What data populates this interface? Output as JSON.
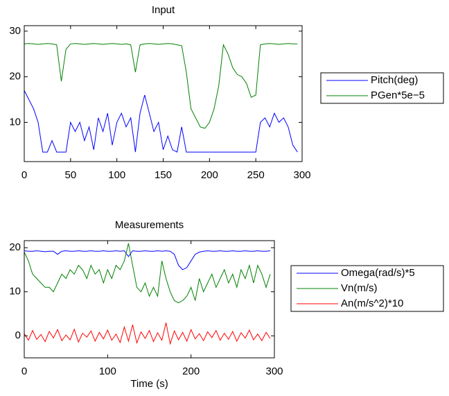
{
  "chart_data": [
    {
      "type": "line",
      "title": "Input",
      "xlim": [
        0,
        300
      ],
      "xticks": [
        0,
        50,
        100,
        150,
        200,
        250,
        300
      ],
      "ylim": [
        1.4,
        31.2
      ],
      "yticks": [
        10,
        20,
        30
      ],
      "legend": "east-outside",
      "x": [
        0,
        5,
        10,
        15,
        20,
        25,
        30,
        35,
        40,
        45,
        50,
        55,
        60,
        65,
        70,
        75,
        80,
        85,
        90,
        95,
        100,
        105,
        110,
        115,
        120,
        125,
        130,
        135,
        140,
        145,
        150,
        155,
        160,
        165,
        170,
        175,
        180,
        185,
        190,
        195,
        200,
        205,
        210,
        215,
        220,
        225,
        230,
        235,
        240,
        245,
        250,
        255,
        260,
        265,
        270,
        275,
        280,
        285,
        290,
        295
      ],
      "series": [
        {
          "name": "Pitch(deg)",
          "color": "#0000ff",
          "values": [
            17,
            15,
            13,
            10,
            3.5,
            3.5,
            6,
            3.5,
            3.5,
            3.5,
            10,
            8,
            10,
            6,
            9,
            4,
            11,
            8,
            12,
            5,
            10,
            12,
            9,
            11,
            3.5,
            12,
            16,
            12,
            8,
            10,
            4,
            7,
            4,
            3.5,
            9,
            3.5,
            3.5,
            3.5,
            3.5,
            3.5,
            3.5,
            3.5,
            3.5,
            3.5,
            3.5,
            3.5,
            3.5,
            3.5,
            3.5,
            3.5,
            3.5,
            10,
            11,
            9,
            12,
            10,
            11,
            9,
            5,
            3.5
          ]
        },
        {
          "name": "PGen*5e−5",
          "color": "#008000",
          "values": [
            27.2,
            27.3,
            27.2,
            27.1,
            27.2,
            27.3,
            27.2,
            27,
            19,
            26,
            27.2,
            27.3,
            27.2,
            27.1,
            27.2,
            27.3,
            27.2,
            27.1,
            27.2,
            27.3,
            27.2,
            27.1,
            27.2,
            27,
            21,
            27,
            27.2,
            27.3,
            27.2,
            27.1,
            27.2,
            27.3,
            27.2,
            27,
            26.8,
            21,
            13,
            11,
            9,
            8.7,
            10,
            13,
            18,
            27,
            25,
            22,
            20.5,
            20,
            18.5,
            15.5,
            16,
            27,
            27.2,
            27.3,
            27.2,
            27.1,
            27.2,
            27.3,
            27.2,
            27.2
          ]
        }
      ]
    },
    {
      "type": "line",
      "title": "Measurements",
      "xlabel": "Time (s)",
      "xlim": [
        0,
        300
      ],
      "xticks": [
        0,
        100,
        200,
        300
      ],
      "ylim": [
        -5,
        21.6
      ],
      "yticks": [
        0,
        10,
        20
      ],
      "legend": "east-outside",
      "x": [
        0,
        5,
        10,
        15,
        20,
        25,
        30,
        35,
        40,
        45,
        50,
        55,
        60,
        65,
        70,
        75,
        80,
        85,
        90,
        95,
        100,
        105,
        110,
        115,
        120,
        125,
        130,
        135,
        140,
        145,
        150,
        155,
        160,
        165,
        170,
        175,
        180,
        185,
        190,
        195,
        200,
        205,
        210,
        215,
        220,
        225,
        230,
        235,
        240,
        245,
        250,
        255,
        260,
        265,
        270,
        275,
        280,
        285,
        290,
        295
      ],
      "series": [
        {
          "name": "Omega(rad/s)*5",
          "color": "#0000ff",
          "values": [
            19.3,
            19.2,
            19.2,
            19.3,
            19.2,
            19.1,
            19.2,
            19.2,
            18.5,
            19.2,
            19.3,
            19.2,
            19.2,
            19.3,
            19.2,
            19.2,
            19.3,
            19.2,
            19.2,
            19.3,
            19.2,
            19.2,
            19.3,
            19.2,
            19.3,
            18,
            19.3,
            19.2,
            19.2,
            19.3,
            19.2,
            19.2,
            19.3,
            19.2,
            19.3,
            19.2,
            18.5,
            16,
            15,
            15.5,
            17,
            18.5,
            19,
            19.2,
            19.3,
            19.2,
            19.2,
            19.3,
            19.2,
            19.2,
            19.3,
            19.2,
            19.2,
            19.3,
            19.2,
            19.2,
            19.3,
            19.2,
            19.2,
            19.3
          ]
        },
        {
          "name": "Vn(m/s)",
          "color": "#008000",
          "values": [
            19,
            17,
            14,
            13,
            12,
            11,
            11,
            10,
            12,
            14,
            13,
            15,
            14,
            16,
            15,
            13,
            16,
            14,
            15,
            12,
            15,
            13,
            16,
            15,
            17,
            21,
            16,
            11,
            10,
            12,
            9,
            11,
            9,
            17,
            13,
            10,
            8,
            7.5,
            8,
            9,
            11,
            8,
            13,
            10,
            12,
            14,
            11,
            13,
            15,
            12,
            14,
            11,
            15,
            13,
            16,
            12,
            16,
            14,
            11,
            14
          ]
        },
        {
          "name": "An(m/s^2)*10",
          "color": "#ff0000",
          "values": [
            0.5,
            -1,
            1.2,
            -0.8,
            0.3,
            -1.3,
            1,
            -0.5,
            1.4,
            -1.1,
            0.2,
            -0.9,
            1.5,
            -1.4,
            0.6,
            -0.3,
            1.1,
            -1.2,
            0.8,
            -0.7,
            1.3,
            -1,
            0.4,
            -1.5,
            2,
            -1.2,
            2.5,
            -1.6,
            0.9,
            -0.6,
            1.2,
            -1.3,
            0.7,
            -1,
            3,
            -1.8,
            1.1,
            -0.9,
            0.8,
            -1.2,
            1.4,
            -0.7,
            0.5,
            -1.1,
            0.9,
            -0.4,
            1.2,
            -1,
            0.6,
            -0.8,
            1,
            -1.2,
            0.7,
            -0.5,
            1.3,
            -0.9,
            0.4,
            -1.1,
            0.8,
            -0.6
          ]
        }
      ]
    }
  ]
}
